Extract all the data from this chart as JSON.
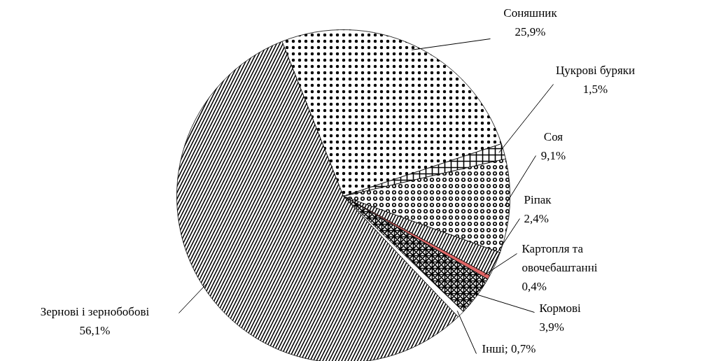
{
  "chart_data": {
    "type": "pie",
    "categories": [
      "Соняшник",
      "Цукрові буряки",
      "Соя",
      "Ріпак",
      "Картопля та овочебаштанні",
      "Кормові",
      "Інші",
      "Зернові і зернобобові"
    ],
    "values": [
      25.9,
      1.5,
      9.1,
      2.4,
      0.4,
      3.9,
      0.7,
      56.1
    ],
    "value_labels": [
      "25,9%",
      "1,5%",
      "9,1%",
      "2,4%",
      "0,4%",
      "3,9%",
      "0,7%",
      "56,1%"
    ],
    "colors": [
      "#ffffff",
      "#ffffff",
      "#ffffff",
      "#ffffff",
      "#e06666",
      "#ffffff",
      "#ffffff",
      "#ffffff"
    ]
  }
}
